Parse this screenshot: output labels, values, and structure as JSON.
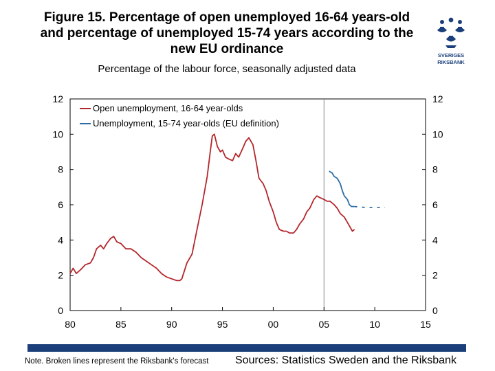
{
  "header": {
    "title_lines": [
      "Figure 15. Percentage of open unemployed 16-64 years-old",
      "and percentage of unemployed 15-74 years according to the",
      "new EU ordinance"
    ],
    "subtitle": "Percentage of the labour force, seasonally adjusted data"
  },
  "logo": {
    "line1": "SVERIGES",
    "line2": "RIKSBANK"
  },
  "colors": {
    "series1": "#b3262b",
    "series2": "#2d6ca5",
    "axis": "#000000",
    "brand": "#1b3f7a"
  },
  "chart_data": {
    "type": "line",
    "title": "",
    "xlabel": "",
    "ylabel": "",
    "xlim": [
      1980,
      2015
    ],
    "ylim": [
      0,
      12
    ],
    "x_ticks": [
      1980,
      1985,
      1990,
      1995,
      2000,
      2005,
      2010,
      2015
    ],
    "x_tick_labels": [
      "80",
      "85",
      "90",
      "95",
      "00",
      "05",
      "10",
      "15"
    ],
    "y_ticks": [
      0,
      2,
      4,
      6,
      8,
      10,
      12
    ],
    "y_tick_labels": [
      "0",
      "2",
      "4",
      "6",
      "8",
      "10",
      "12"
    ],
    "grid": false,
    "legend_position": "top-left",
    "vertical_marker_x": 2005,
    "series": [
      {
        "name": "Open unemployment, 16-64 year-olds",
        "color": "#b3262b",
        "style": "solid",
        "points": [
          [
            1980.0,
            2.1
          ],
          [
            1980.3,
            2.4
          ],
          [
            1980.6,
            2.1
          ],
          [
            1981.0,
            2.3
          ],
          [
            1981.5,
            2.6
          ],
          [
            1982.0,
            2.7
          ],
          [
            1982.3,
            3.0
          ],
          [
            1982.6,
            3.5
          ],
          [
            1983.0,
            3.7
          ],
          [
            1983.3,
            3.5
          ],
          [
            1983.6,
            3.8
          ],
          [
            1984.0,
            4.1
          ],
          [
            1984.3,
            4.2
          ],
          [
            1984.6,
            3.9
          ],
          [
            1985.0,
            3.8
          ],
          [
            1985.5,
            3.5
          ],
          [
            1986.0,
            3.5
          ],
          [
            1986.5,
            3.3
          ],
          [
            1987.0,
            3.0
          ],
          [
            1987.5,
            2.8
          ],
          [
            1988.0,
            2.6
          ],
          [
            1988.5,
            2.4
          ],
          [
            1989.0,
            2.1
          ],
          [
            1989.5,
            1.9
          ],
          [
            1990.0,
            1.8
          ],
          [
            1990.5,
            1.7
          ],
          [
            1990.8,
            1.7
          ],
          [
            1991.0,
            1.8
          ],
          [
            1991.5,
            2.7
          ],
          [
            1992.0,
            3.2
          ],
          [
            1992.5,
            4.6
          ],
          [
            1993.0,
            6.0
          ],
          [
            1993.5,
            7.6
          ],
          [
            1993.8,
            9.0
          ],
          [
            1994.0,
            9.9
          ],
          [
            1994.2,
            10.0
          ],
          [
            1994.5,
            9.3
          ],
          [
            1994.8,
            9.0
          ],
          [
            1995.0,
            9.1
          ],
          [
            1995.3,
            8.7
          ],
          [
            1995.6,
            8.6
          ],
          [
            1996.0,
            8.5
          ],
          [
            1996.3,
            8.9
          ],
          [
            1996.6,
            8.7
          ],
          [
            1997.0,
            9.2
          ],
          [
            1997.3,
            9.6
          ],
          [
            1997.6,
            9.8
          ],
          [
            1998.0,
            9.4
          ],
          [
            1998.3,
            8.5
          ],
          [
            1998.6,
            7.5
          ],
          [
            1999.0,
            7.2
          ],
          [
            1999.3,
            6.8
          ],
          [
            1999.6,
            6.2
          ],
          [
            2000.0,
            5.6
          ],
          [
            2000.3,
            5.0
          ],
          [
            2000.6,
            4.6
          ],
          [
            2001.0,
            4.5
          ],
          [
            2001.3,
            4.5
          ],
          [
            2001.6,
            4.4
          ],
          [
            2002.0,
            4.4
          ],
          [
            2002.3,
            4.6
          ],
          [
            2002.6,
            4.9
          ],
          [
            2003.0,
            5.2
          ],
          [
            2003.3,
            5.6
          ],
          [
            2003.6,
            5.8
          ],
          [
            2004.0,
            6.3
          ],
          [
            2004.3,
            6.5
          ],
          [
            2004.6,
            6.4
          ],
          [
            2005.0,
            6.3
          ],
          [
            2005.3,
            6.2
          ],
          [
            2005.6,
            6.2
          ],
          [
            2006.0,
            6.0
          ],
          [
            2006.3,
            5.8
          ],
          [
            2006.6,
            5.5
          ],
          [
            2007.0,
            5.3
          ],
          [
            2007.3,
            5.0
          ],
          [
            2007.6,
            4.7
          ],
          [
            2007.8,
            4.5
          ],
          [
            2008.0,
            4.6
          ]
        ]
      },
      {
        "name": "Unemployment, 15-74 year-olds (EU definition)",
        "color": "#2d6ca5",
        "style": "solid",
        "points": [
          [
            2005.5,
            7.9
          ],
          [
            2005.8,
            7.8
          ],
          [
            2006.0,
            7.6
          ],
          [
            2006.3,
            7.5
          ],
          [
            2006.6,
            7.2
          ],
          [
            2006.8,
            6.8
          ],
          [
            2007.0,
            6.5
          ],
          [
            2007.3,
            6.3
          ],
          [
            2007.5,
            6.0
          ],
          [
            2007.7,
            5.9
          ],
          [
            2008.0,
            5.9
          ]
        ]
      },
      {
        "name": "Riksbank forecast",
        "color": "#2d6ca5",
        "style": "dashed",
        "points": [
          [
            2008.0,
            5.9
          ],
          [
            2009.0,
            5.85
          ],
          [
            2010.0,
            5.85
          ],
          [
            2011.0,
            5.85
          ]
        ]
      }
    ]
  },
  "footer": {
    "note": "Note. Broken lines represent the Riksbank's forecast",
    "sources": "Sources: Statistics Sweden and the Riksbank"
  }
}
